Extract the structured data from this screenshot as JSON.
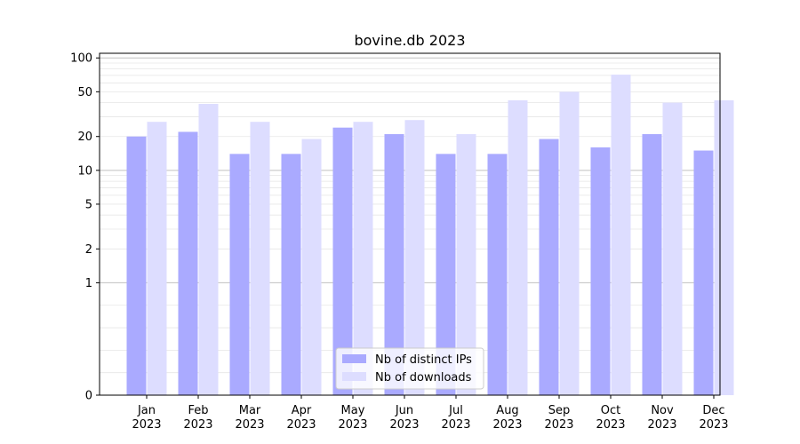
{
  "chart_data": {
    "type": "bar",
    "title": "bovine.db 2023",
    "xlabel": "",
    "ylabel": "",
    "y_scale": "symlog",
    "ylim": [
      0,
      110
    ],
    "yticks": [
      0,
      1,
      2,
      5,
      10,
      20,
      50,
      100
    ],
    "grid": true,
    "legend_position": "bottom-center",
    "categories": [
      "Jan\n2023",
      "Feb\n2023",
      "Mar\n2023",
      "Apr\n2023",
      "May\n2023",
      "Jun\n2023",
      "Jul\n2023",
      "Aug\n2023",
      "Sep\n2023",
      "Oct\n2023",
      "Nov\n2023",
      "Dec\n2023"
    ],
    "series": [
      {
        "name": "Nb of distinct IPs",
        "color": "#aaaaff",
        "values": [
          20,
          22,
          14,
          14,
          24,
          21,
          14,
          14,
          19,
          16,
          21,
          15
        ]
      },
      {
        "name": "Nb of downloads",
        "color": "#ddddff",
        "values": [
          27,
          39,
          27,
          19,
          27,
          28,
          21,
          42,
          50,
          71,
          40,
          42
        ]
      }
    ]
  }
}
